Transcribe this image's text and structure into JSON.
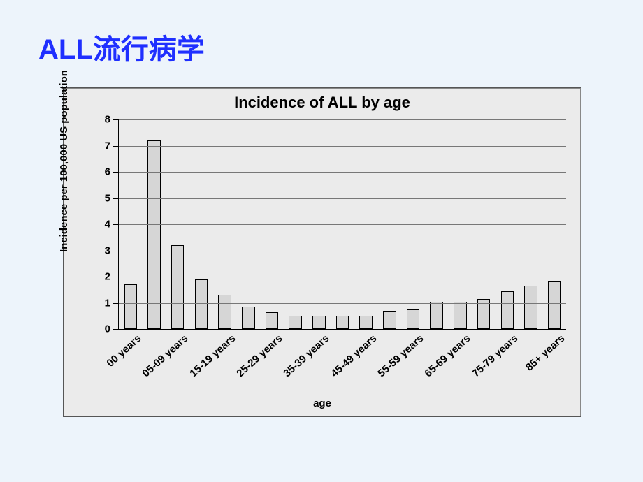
{
  "page": {
    "title": "ALL流行病学",
    "title_color": "#1f2fff",
    "title_fontsize": 40,
    "background_color": "#edf4fb"
  },
  "chart": {
    "type": "bar",
    "title": "Incidence of ALL by age",
    "title_fontsize": 22,
    "xlabel": "age",
    "ylabel": "Incidence per 100,000 US population",
    "label_fontsize": 15,
    "plot_background": "#ebebeb",
    "grid_color": "#777777",
    "axis_color": "#000000",
    "bar_fill": "#d6d6d6",
    "bar_border": "#000000",
    "bar_width": 0.55,
    "ylim": [
      0,
      8
    ],
    "ytick_step": 1,
    "categories": [
      "00 years",
      "",
      "05-09 years",
      "",
      "15-19 years",
      "",
      "25-29 years",
      "",
      "35-39 years",
      "",
      "45-49 years",
      "",
      "55-59 years",
      "",
      "65-69 years",
      "",
      "75-79 years",
      "",
      "85+ years"
    ],
    "values": [
      1.7,
      7.2,
      3.2,
      1.9,
      1.3,
      0.85,
      0.65,
      0.5,
      0.5,
      0.5,
      0.5,
      0.7,
      0.75,
      1.05,
      1.05,
      1.15,
      1.45,
      1.65,
      1.85
    ]
  }
}
